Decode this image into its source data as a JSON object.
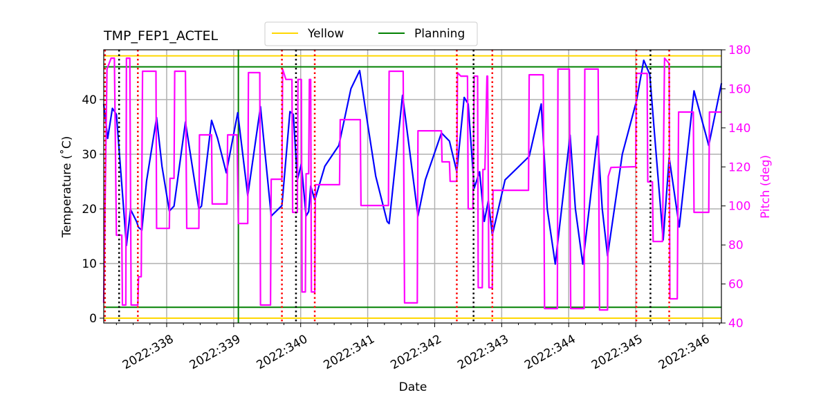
{
  "chart_data": {
    "type": "line",
    "title": "TMP_FEP1_ACTEL",
    "xlabel": "Date",
    "ylabel": "Temperature (˚C)",
    "y2label": "Pitch (deg)",
    "xlim": [
      337.061,
      346.279
    ],
    "ylim": [
      -0.886,
      49.11
    ],
    "y2lim": [
      40,
      180
    ],
    "x_ticks": [
      338,
      339,
      340,
      341,
      342,
      343,
      344,
      345,
      346
    ],
    "x_tick_labels": [
      "2022:338",
      "2022:339",
      "2022:340",
      "2022:341",
      "2022:342",
      "2022:343",
      "2022:344",
      "2022:345",
      "2022:346"
    ],
    "y_ticks": [
      0,
      10,
      20,
      30,
      40
    ],
    "y2_ticks": [
      40,
      60,
      80,
      100,
      120,
      140,
      160,
      180
    ],
    "grid": true,
    "legend": {
      "placement": "top-center, above plot",
      "entries": [
        {
          "label": "Yellow",
          "color": "#ffd700"
        },
        {
          "label": "Planning",
          "color": "#008000"
        }
      ]
    },
    "hlines": [
      {
        "y": 48,
        "color": "#ffd700",
        "legend": "Yellow"
      },
      {
        "y": 0,
        "color": "#ffd700",
        "legend": "Yellow"
      },
      {
        "y": 46,
        "color": "#008000",
        "legend": "Planning"
      },
      {
        "y": 2,
        "color": "#008000",
        "legend": "Planning"
      }
    ],
    "vline_planning": {
      "x": 339.07,
      "color": "#008000"
    },
    "vlines_red_dotted": [
      337.08,
      337.57,
      339.72,
      340.21,
      342.33,
      342.86,
      345.01,
      345.5
    ],
    "vlines_black_dotted": [
      337.29,
      339.93,
      342.58,
      345.22
    ],
    "series": [
      {
        "axis": "left",
        "color": "#0000ff",
        "points": [
          [
            337.06,
            39.2
          ],
          [
            337.12,
            32.9
          ],
          [
            337.19,
            38.4
          ],
          [
            337.25,
            37.3
          ],
          [
            337.4,
            13.3
          ],
          [
            337.46,
            19.9
          ],
          [
            337.55,
            17.7
          ],
          [
            337.58,
            16.6
          ],
          [
            337.63,
            16.1
          ],
          [
            337.7,
            25.1
          ],
          [
            337.85,
            36.7
          ],
          [
            337.93,
            27.8
          ],
          [
            338.04,
            19.6
          ],
          [
            338.11,
            20.5
          ],
          [
            338.28,
            35.9
          ],
          [
            338.48,
            20.0
          ],
          [
            338.52,
            20.5
          ],
          [
            338.67,
            36.2
          ],
          [
            338.76,
            32.9
          ],
          [
            338.89,
            26.6
          ],
          [
            339.06,
            37.6
          ],
          [
            339.21,
            22.4
          ],
          [
            339.4,
            38.7
          ],
          [
            339.56,
            18.7
          ],
          [
            339.72,
            20.6
          ],
          [
            339.84,
            37.8
          ],
          [
            339.89,
            37.3
          ],
          [
            339.95,
            25.3
          ],
          [
            340.01,
            28.2
          ],
          [
            340.08,
            18.7
          ],
          [
            340.12,
            19.5
          ],
          [
            340.15,
            24.2
          ],
          [
            340.21,
            21.6
          ],
          [
            340.36,
            27.8
          ],
          [
            340.57,
            31.6
          ],
          [
            340.75,
            42.0
          ],
          [
            340.88,
            45.3
          ],
          [
            341.0,
            35.5
          ],
          [
            341.12,
            26.0
          ],
          [
            341.29,
            17.7
          ],
          [
            341.32,
            17.3
          ],
          [
            341.52,
            40.8
          ],
          [
            341.75,
            18.7
          ],
          [
            341.86,
            25.3
          ],
          [
            342.1,
            33.9
          ],
          [
            342.22,
            32.4
          ],
          [
            342.33,
            26.8
          ],
          [
            342.44,
            40.4
          ],
          [
            342.5,
            39.2
          ],
          [
            342.59,
            23.8
          ],
          [
            342.67,
            26.8
          ],
          [
            342.74,
            17.7
          ],
          [
            342.8,
            21.5
          ],
          [
            342.86,
            15.2
          ],
          [
            343.05,
            25.3
          ],
          [
            343.41,
            29.6
          ],
          [
            343.59,
            39.2
          ],
          [
            343.68,
            20.0
          ],
          [
            343.8,
            9.9
          ],
          [
            344.02,
            33.5
          ],
          [
            344.1,
            20.0
          ],
          [
            344.21,
            9.9
          ],
          [
            344.43,
            33.3
          ],
          [
            344.5,
            20.0
          ],
          [
            344.58,
            11.4
          ],
          [
            344.8,
            30.0
          ],
          [
            345.01,
            39.7
          ],
          [
            345.12,
            47.2
          ],
          [
            345.21,
            44.6
          ],
          [
            345.29,
            32.3
          ],
          [
            345.41,
            14.3
          ],
          [
            345.5,
            29.4
          ],
          [
            345.65,
            16.7
          ],
          [
            345.87,
            41.6
          ],
          [
            346.09,
            31.6
          ],
          [
            346.28,
            43.0
          ]
        ]
      },
      {
        "axis": "right",
        "color": "#ff00ff",
        "points": [
          [
            337.06,
            50.3
          ],
          [
            337.11,
            170.1
          ],
          [
            337.17,
            175.7
          ],
          [
            337.22,
            175.7
          ],
          [
            337.25,
            85.0
          ],
          [
            337.33,
            85.0
          ],
          [
            337.34,
            49.2
          ],
          [
            337.39,
            49.2
          ],
          [
            337.4,
            175.7
          ],
          [
            337.45,
            175.7
          ],
          [
            337.47,
            49.2
          ],
          [
            337.57,
            49.2
          ],
          [
            337.58,
            63.7
          ],
          [
            337.62,
            63.7
          ],
          [
            337.64,
            169.0
          ],
          [
            337.84,
            169.0
          ],
          [
            337.85,
            88.5
          ],
          [
            338.04,
            88.5
          ],
          [
            338.05,
            114.1
          ],
          [
            338.11,
            114.1
          ],
          [
            338.12,
            169.0
          ],
          [
            338.28,
            169.0
          ],
          [
            338.3,
            88.5
          ],
          [
            338.48,
            88.5
          ],
          [
            338.49,
            136.4
          ],
          [
            338.67,
            136.4
          ],
          [
            338.68,
            101.0
          ],
          [
            338.9,
            101.0
          ],
          [
            338.91,
            136.4
          ],
          [
            339.05,
            136.4
          ],
          [
            339.07,
            91.0
          ],
          [
            339.21,
            91.0
          ],
          [
            339.22,
            168.3
          ],
          [
            339.39,
            168.3
          ],
          [
            339.4,
            49.2
          ],
          [
            339.55,
            49.2
          ],
          [
            339.56,
            113.7
          ],
          [
            339.72,
            113.7
          ],
          [
            339.73,
            170.1
          ],
          [
            339.78,
            164.8
          ],
          [
            339.87,
            164.8
          ],
          [
            339.88,
            96.7
          ],
          [
            339.95,
            96.7
          ],
          [
            339.96,
            164.8
          ],
          [
            340.01,
            164.8
          ],
          [
            340.02,
            55.9
          ],
          [
            340.07,
            55.9
          ],
          [
            340.08,
            116.5
          ],
          [
            340.12,
            116.5
          ],
          [
            340.13,
            164.8
          ],
          [
            340.15,
            164.8
          ],
          [
            340.16,
            55.9
          ],
          [
            340.21,
            55.9
          ],
          [
            340.22,
            110.9
          ],
          [
            340.58,
            110.9
          ],
          [
            340.59,
            144.2
          ],
          [
            340.89,
            144.2
          ],
          [
            340.9,
            100.2
          ],
          [
            341.31,
            100.2
          ],
          [
            341.32,
            169.0
          ],
          [
            341.53,
            169.0
          ],
          [
            341.55,
            50.3
          ],
          [
            341.74,
            50.3
          ],
          [
            341.75,
            138.5
          ],
          [
            342.1,
            138.5
          ],
          [
            342.11,
            122.6
          ],
          [
            342.22,
            122.6
          ],
          [
            342.23,
            112.6
          ],
          [
            342.33,
            112.6
          ],
          [
            342.34,
            168.3
          ],
          [
            342.39,
            166.5
          ],
          [
            342.49,
            166.5
          ],
          [
            342.5,
            98.5
          ],
          [
            342.57,
            98.5
          ],
          [
            342.59,
            166.5
          ],
          [
            342.64,
            166.5
          ],
          [
            342.65,
            58.1
          ],
          [
            342.71,
            58.1
          ],
          [
            342.72,
            118.7
          ],
          [
            342.75,
            118.7
          ],
          [
            342.78,
            166.5
          ],
          [
            342.79,
            166.5
          ],
          [
            342.81,
            58.1
          ],
          [
            342.86,
            58.1
          ],
          [
            342.87,
            108.0
          ],
          [
            343.4,
            108.0
          ],
          [
            343.41,
            167.2
          ],
          [
            343.62,
            167.2
          ],
          [
            343.64,
            47.4
          ],
          [
            343.83,
            47.4
          ],
          [
            343.84,
            170.1
          ],
          [
            344.01,
            170.1
          ],
          [
            344.03,
            47.4
          ],
          [
            344.23,
            47.4
          ],
          [
            344.24,
            170.1
          ],
          [
            344.44,
            170.1
          ],
          [
            344.46,
            46.7
          ],
          [
            344.58,
            46.7
          ],
          [
            344.59,
            115.1
          ],
          [
            344.63,
            119.7
          ],
          [
            345.0,
            120.1
          ],
          [
            345.01,
            167.9
          ],
          [
            345.17,
            167.9
          ],
          [
            345.18,
            112.3
          ],
          [
            345.25,
            112.3
          ],
          [
            345.26,
            81.8
          ],
          [
            345.4,
            81.8
          ],
          [
            345.43,
            175.7
          ],
          [
            345.5,
            172.9
          ],
          [
            345.51,
            52.4
          ],
          [
            345.62,
            52.4
          ],
          [
            345.64,
            148.1
          ],
          [
            345.86,
            148.1
          ],
          [
            345.87,
            96.7
          ],
          [
            346.09,
            96.7
          ],
          [
            346.1,
            148.1
          ],
          [
            346.28,
            148.1
          ]
        ]
      }
    ]
  }
}
